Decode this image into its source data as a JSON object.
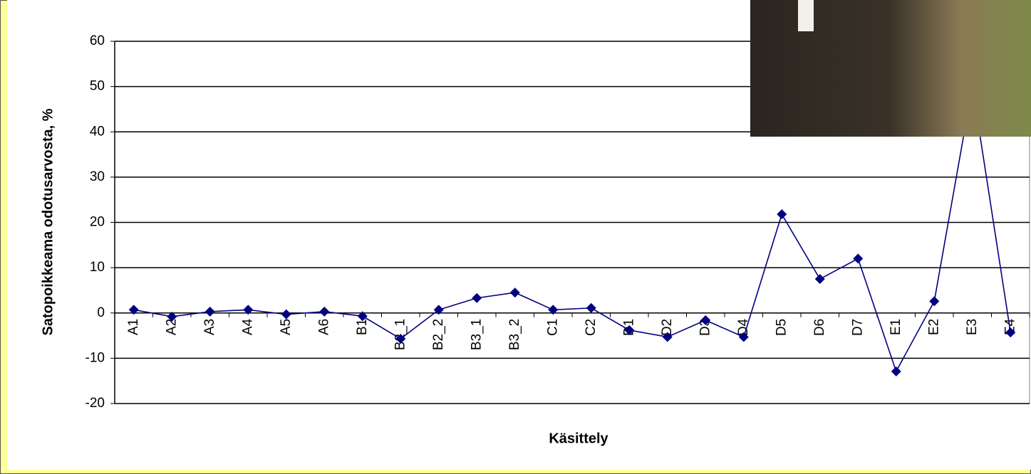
{
  "chart_data": {
    "type": "line",
    "y_label": "Satopoikkeama odotusarvosta, %",
    "x_label": "Käsittely",
    "categories": [
      "A1",
      "A2",
      "A3",
      "A4",
      "A5",
      "A6",
      "B1",
      "B2_1",
      "B2_2",
      "B3_1",
      "B3_2",
      "C1",
      "C2",
      "D1",
      "D2",
      "D3",
      "D4",
      "D5",
      "D6",
      "D7",
      "E1",
      "E2",
      "E3",
      "E4"
    ],
    "series": [
      {
        "color": "#000080",
        "values": [
          0.7,
          -0.8,
          0.3,
          0.7,
          -0.3,
          0.3,
          -0.7,
          -5.7,
          0.7,
          3.3,
          4.5,
          0.7,
          1.1,
          -3.8,
          -5.3,
          -1.6,
          -5.3,
          21.8,
          7.5,
          12,
          -12.9,
          2.6,
          50,
          -4.3
        ]
      }
    ],
    "ylim": [
      -20,
      60
    ],
    "yticks": [
      -20,
      -10,
      0,
      10,
      20,
      30,
      40,
      50,
      60
    ],
    "grid": true
  }
}
